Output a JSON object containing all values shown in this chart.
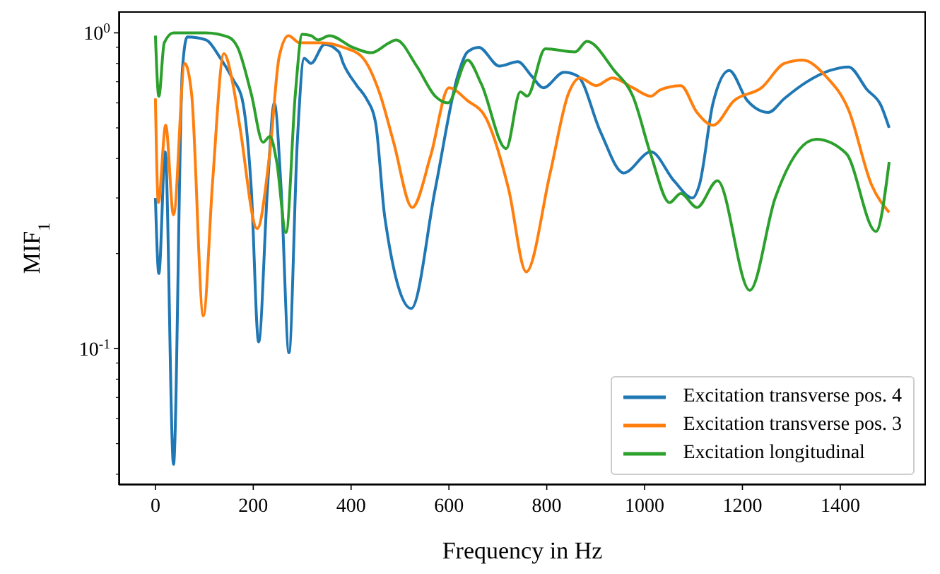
{
  "chart_data": {
    "type": "line",
    "xlabel": "Frequency in Hz",
    "ylabel": "MIF$_{1}$",
    "log": "y",
    "legend": "bottom right",
    "xlim": [
      -75,
      1575
    ],
    "xticks": [
      0,
      200,
      400,
      600,
      800,
      1000,
      1200,
      1400
    ],
    "ylim": [
      0.037,
      1.17
    ],
    "yticks": [
      {
        "value": 0.04,
        "label": null
      },
      {
        "value": 0.05,
        "label": null
      },
      {
        "value": 0.06,
        "label": null
      },
      {
        "value": 0.07,
        "label": null
      },
      {
        "value": 0.08,
        "label": null
      },
      {
        "value": 0.09,
        "label": null
      },
      {
        "value": 0.1,
        "label": "10$^{-1}$"
      },
      {
        "value": 0.2,
        "label": null
      },
      {
        "value": 0.3,
        "label": null
      },
      {
        "value": 0.4,
        "label": null
      },
      {
        "value": 0.5,
        "label": null
      },
      {
        "value": 0.6,
        "label": null
      },
      {
        "value": 0.7,
        "label": null
      },
      {
        "value": 0.8,
        "label": null
      },
      {
        "value": 0.9,
        "label": null
      },
      {
        "value": 1,
        "label": "10$^{0}$"
      }
    ],
    "series": [
      {
        "name": "Excitation transverse pos. 4",
        "color": "#1f77b4",
        "x": [
          0,
          7,
          20,
          37,
          55,
          65,
          103,
          131,
          159,
          177,
          196,
          211,
          229,
          243,
          257,
          273,
          290,
          304,
          318,
          346,
          375,
          384,
          412,
          431,
          450,
          469,
          523,
          572,
          619,
          638,
          661,
          703,
          741,
          769,
          793,
          835,
          863,
          910,
          957,
          1013,
          1060,
          1098,
          1112,
          1140,
          1173,
          1210,
          1253,
          1286,
          1332,
          1379,
          1417,
          1455,
          1483,
          1500
        ],
        "values": [
          0.3,
          0.173,
          0.42,
          0.043,
          0.76,
          0.97,
          0.95,
          0.84,
          0.71,
          0.62,
          0.32,
          0.105,
          0.32,
          0.6,
          0.32,
          0.097,
          0.45,
          0.83,
          0.8,
          0.92,
          0.87,
          0.8,
          0.68,
          0.62,
          0.52,
          0.26,
          0.134,
          0.32,
          0.74,
          0.87,
          0.9,
          0.785,
          0.81,
          0.73,
          0.67,
          0.75,
          0.73,
          0.485,
          0.36,
          0.42,
          0.34,
          0.3,
          0.33,
          0.6,
          0.76,
          0.61,
          0.56,
          0.62,
          0.7,
          0.76,
          0.78,
          0.66,
          0.59,
          0.5
        ]
      },
      {
        "name": "Excitation transverse pos. 3",
        "color": "#ff7f0e",
        "x": [
          0,
          6,
          21,
          37,
          60,
          74,
          98,
          117,
          140,
          159,
          173,
          208,
          234,
          253,
          272,
          295,
          337,
          384,
          422,
          459,
          487,
          525,
          563,
          600,
          638,
          675,
          722,
          758,
          807,
          844,
          868,
          901,
          934,
          976,
          1013,
          1032,
          1074,
          1107,
          1140,
          1183,
          1239,
          1286,
          1323,
          1370,
          1417,
          1464,
          1500
        ],
        "values": [
          0.62,
          0.29,
          0.51,
          0.265,
          0.8,
          0.64,
          0.127,
          0.34,
          0.86,
          0.68,
          0.5,
          0.24,
          0.42,
          0.84,
          0.98,
          0.93,
          0.93,
          0.9,
          0.84,
          0.64,
          0.45,
          0.28,
          0.41,
          0.67,
          0.61,
          0.54,
          0.32,
          0.175,
          0.36,
          0.64,
          0.72,
          0.68,
          0.72,
          0.67,
          0.63,
          0.66,
          0.68,
          0.56,
          0.51,
          0.61,
          0.67,
          0.8,
          0.82,
          0.73,
          0.57,
          0.33,
          0.27
        ]
      },
      {
        "name": "Excitation longitudinal",
        "color": "#2ca02c",
        "x": [
          0,
          7,
          18,
          37,
          103,
          149,
          168,
          196,
          220,
          234,
          248,
          267,
          286,
          300,
          318,
          332,
          356,
          403,
          441,
          478,
          492,
          534,
          572,
          598,
          638,
          666,
          717,
          746,
          760,
          797,
          858,
          882,
          938,
          976,
          1013,
          1051,
          1074,
          1107,
          1149,
          1215,
          1267,
          1351,
          1412,
          1473,
          1500
        ],
        "values": [
          0.98,
          0.63,
          0.93,
          1.0,
          1.0,
          0.97,
          0.9,
          0.64,
          0.45,
          0.47,
          0.39,
          0.233,
          0.64,
          0.99,
          0.98,
          0.95,
          0.98,
          0.9,
          0.865,
          0.93,
          0.95,
          0.785,
          0.63,
          0.6,
          0.82,
          0.69,
          0.43,
          0.65,
          0.63,
          0.89,
          0.87,
          0.94,
          0.76,
          0.63,
          0.41,
          0.29,
          0.31,
          0.28,
          0.34,
          0.153,
          0.3,
          0.46,
          0.415,
          0.235,
          0.39
        ]
      }
    ]
  }
}
